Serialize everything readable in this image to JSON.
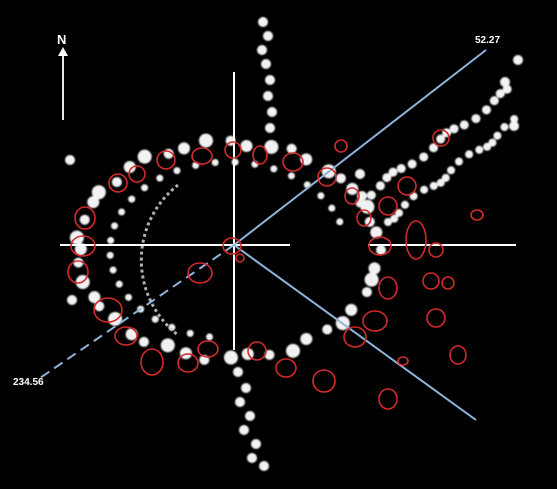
{
  "labels": {
    "north": "N",
    "azimuth_upper": "52.27",
    "azimuth_lower": "234.56"
  },
  "colors": {
    "background": "#000000",
    "crosshair": "#ffffff",
    "azimuth_line": "#8fb4dc",
    "marker_ring": "#d42a2a",
    "dots": "#f2f2f2"
  }
}
